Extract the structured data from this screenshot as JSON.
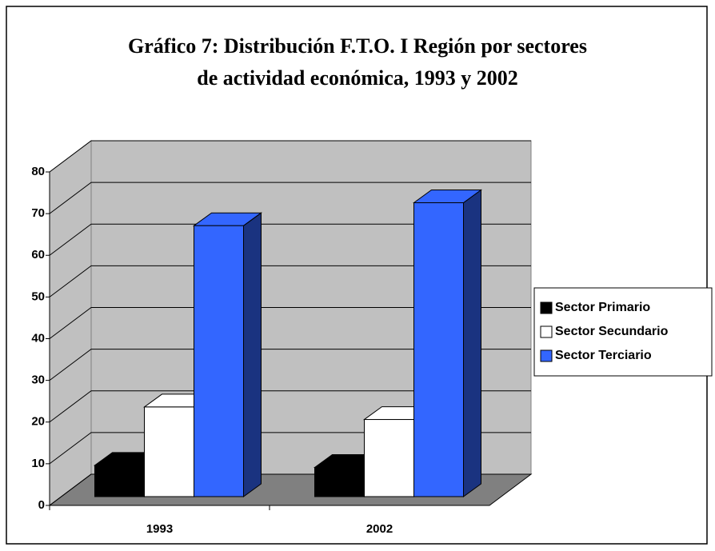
{
  "chart_data": {
    "type": "bar3d",
    "title_lines": [
      "Gráfico 7: Distribución F.T.O. I Región por sectores",
      "de actividad económica, 1993 y 2002"
    ],
    "categories": [
      "1993",
      "2002"
    ],
    "series": [
      {
        "name": "Sector Primario",
        "color": "#000000",
        "side": "#000000",
        "values": [
          7.5,
          7
        ]
      },
      {
        "name": "Sector Secundario",
        "color": "#ffffff",
        "side": "#ffffff",
        "values": [
          21.5,
          18.5
        ]
      },
      {
        "name": "Sector Terciario",
        "color": "#3366ff",
        "side": "#1a3380",
        "values": [
          65,
          70.5
        ]
      }
    ],
    "ylim": [
      0,
      80
    ],
    "yticks": [
      0,
      10,
      20,
      30,
      40,
      50,
      60,
      70,
      80
    ],
    "grid": true,
    "legend": "right"
  }
}
